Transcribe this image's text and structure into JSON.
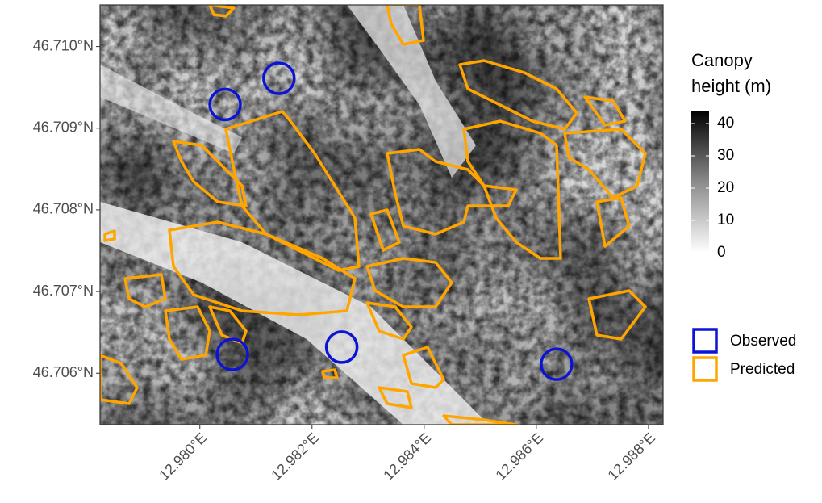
{
  "chart_data": {
    "type": "map",
    "xlim": [
      12.97822,
      12.98826
    ],
    "ylim": [
      46.70537,
      46.71051
    ],
    "xticks": [
      {
        "value": 12.98,
        "label": "12.980°E"
      },
      {
        "value": 12.982,
        "label": "12.982°E"
      },
      {
        "value": 12.984,
        "label": "12.984°E"
      },
      {
        "value": 12.986,
        "label": "12.986°E"
      },
      {
        "value": 12.988,
        "label": "12.988°E"
      }
    ],
    "yticks": [
      {
        "value": 46.706,
        "label": "46.706°N"
      },
      {
        "value": 46.707,
        "label": "46.707°N"
      },
      {
        "value": 46.708,
        "label": "46.708°N"
      },
      {
        "value": 46.709,
        "label": "46.709°N"
      },
      {
        "value": 46.71,
        "label": "46.710°N"
      }
    ],
    "color_scale": {
      "title": [
        "Canopy",
        "height (m)"
      ],
      "lim": [
        0,
        44
      ],
      "ticks": [
        0,
        10,
        20,
        30,
        40
      ]
    },
    "series": [
      {
        "name": "Observed",
        "color": "#0b14d4",
        "x": [
          12.98141,
          12.98045,
          12.98058,
          12.98253,
          12.98636
        ],
        "y": [
          46.70961,
          46.70929,
          46.70623,
          46.70632,
          46.70611
        ]
      },
      {
        "name": "Predicted",
        "color": "#ffa500"
      }
    ]
  }
}
